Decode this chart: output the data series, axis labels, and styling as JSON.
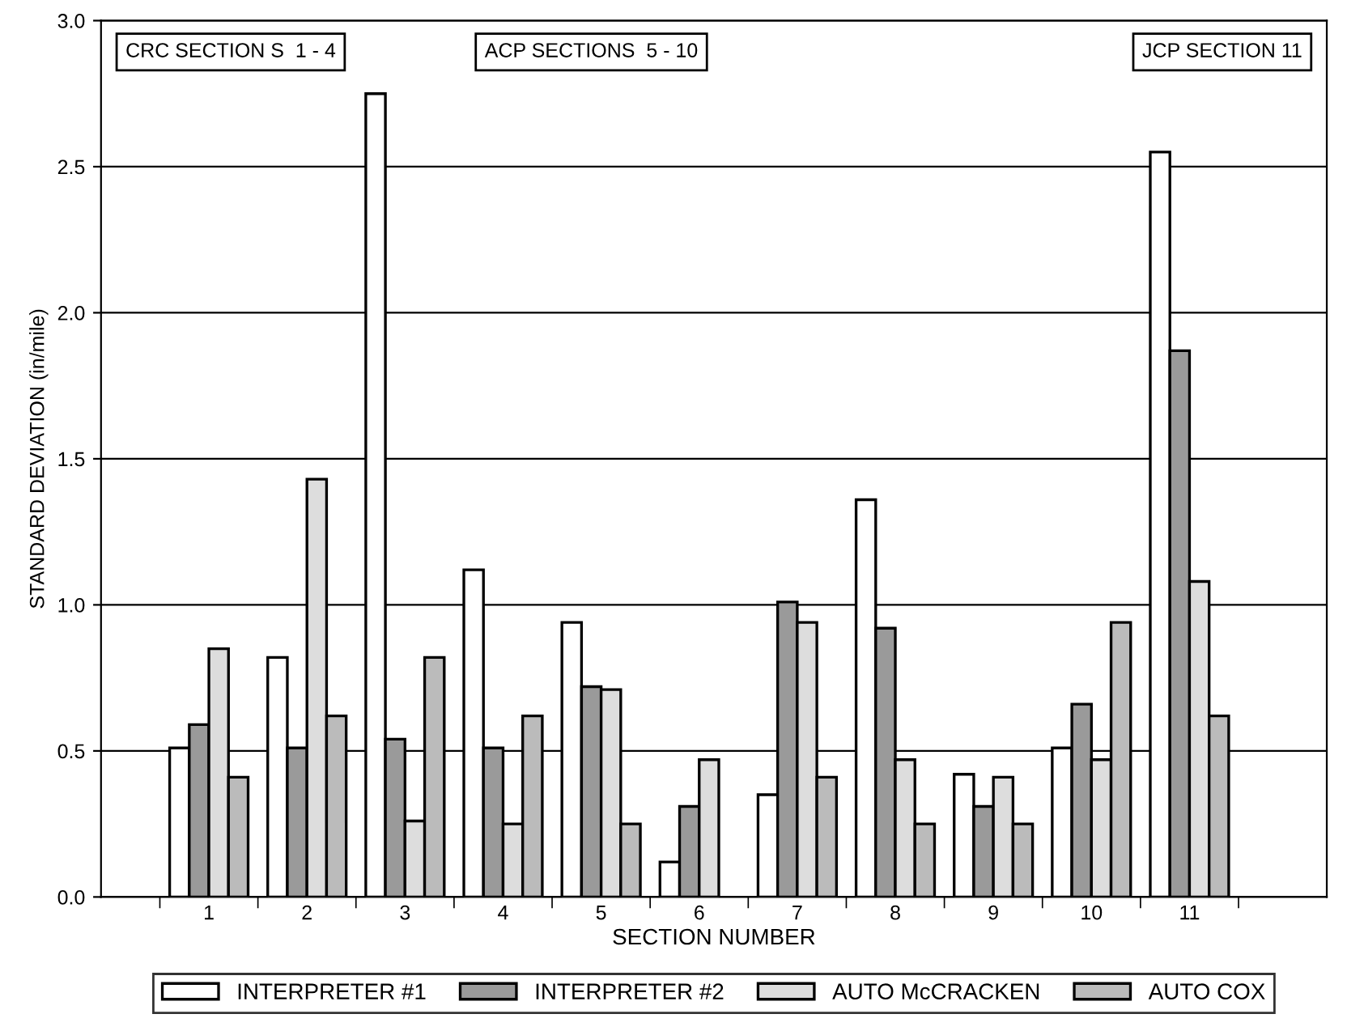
{
  "chart_data": {
    "type": "bar",
    "xlabel": "SECTION NUMBER",
    "ylabel": "STANDARD DEVIATION (in/mile)",
    "categories": [
      null,
      "1",
      "2",
      "3",
      "4",
      "5",
      "6",
      "7",
      "8",
      "9",
      "10",
      "11",
      null
    ],
    "series": [
      {
        "name": "INTERPRETER #1",
        "color": "#ffffff",
        "values": [
          null,
          0.51,
          0.82,
          2.75,
          1.12,
          0.94,
          0.12,
          0.35,
          1.36,
          0.42,
          0.51,
          2.55,
          null
        ]
      },
      {
        "name": "INTERPRETER #2",
        "color": "#9a9a9a",
        "values": [
          null,
          0.59,
          0.51,
          0.54,
          0.51,
          0.72,
          0.31,
          1.01,
          0.92,
          0.31,
          0.66,
          1.87,
          null
        ]
      },
      {
        "name": "AUTO McCRACKEN",
        "color": "#dddddd",
        "values": [
          null,
          0.85,
          1.43,
          0.26,
          0.25,
          0.71,
          0.47,
          0.94,
          0.47,
          0.41,
          0.47,
          1.08,
          null
        ]
      },
      {
        "name": "AUTO COX",
        "color": "#bbbbbb",
        "values": [
          null,
          0.41,
          0.62,
          0.82,
          0.62,
          0.25,
          null,
          0.41,
          0.25,
          0.25,
          0.94,
          0.62,
          null
        ]
      }
    ],
    "ylim": [
      0,
      3.0
    ],
    "yticks": [
      {
        "value": 0,
        "label": "0.0"
      },
      {
        "value": 0.5,
        "label": "0.5"
      },
      {
        "value": 1.0,
        "label": "1.0"
      },
      {
        "value": 1.5,
        "label": "1.5"
      },
      {
        "value": 2.0,
        "label": "2.0"
      },
      {
        "value": 2.5,
        "label": "2.5"
      },
      {
        "value": 3.0,
        "label": "3.0"
      }
    ],
    "grid": "y",
    "legend": "bottom",
    "annotations": [
      "CRC SECTION S  1 - 4",
      "ACP SECTIONS  5 - 10",
      "JCP SECTION 11"
    ]
  }
}
